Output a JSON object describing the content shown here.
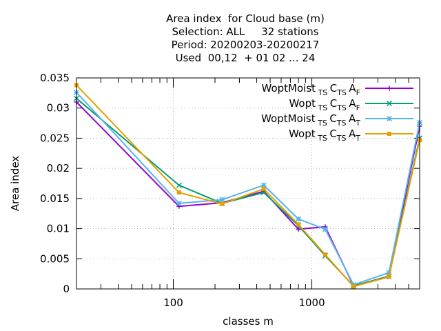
{
  "chart_data": {
    "type": "line",
    "title_lines": [
      "Area index  for Cloud base (m)",
      "Selection: ALL     32 stations",
      "Period: 20200203-20200217",
      "Used  00,12  + 01 02 ... 24"
    ],
    "xlabel": "classes m",
    "ylabel": "Area index",
    "x_scale": "log",
    "xlim": [
      20,
      6000
    ],
    "ylim": [
      0,
      0.035
    ],
    "x_tick_labels": [
      "100",
      "1000"
    ],
    "y_tick_labels": [
      "0",
      "0.005",
      "0.01",
      "0.015",
      "0.02",
      "0.025",
      "0.03",
      "0.035"
    ],
    "grid": true,
    "legend_position": "top-right",
    "x": [
      20,
      110,
      225,
      450,
      800,
      1250,
      2000,
      3600,
      6000
    ],
    "series": [
      {
        "name": "WoptMoist TS C TS A F",
        "label_main": "WoptMoist",
        "label_sub": "TS",
        "label_mid": "C",
        "label_sub2": "TS",
        "label_end": "A",
        "label_sub3": "F",
        "color": "#9400d3",
        "marker": "plus",
        "values": [
          0.031,
          0.0137,
          0.0143,
          0.0162,
          0.0099,
          0.0103,
          0.0005,
          0.0021,
          0.027
        ]
      },
      {
        "name": "Wopt TS C TS A F",
        "label_main": "Wopt",
        "label_sub": "TS",
        "label_mid": "C",
        "label_sub2": "TS",
        "label_end": "A",
        "label_sub3": "F",
        "color": "#009e73",
        "marker": "cross",
        "values": [
          0.0316,
          0.0172,
          0.0142,
          0.016,
          0.0105,
          0.0055,
          0.0005,
          0.0021,
          0.025
        ]
      },
      {
        "name": "WoptMoist TS C TS A T",
        "label_main": "WoptMoist",
        "label_sub": "TS",
        "label_mid": "C",
        "label_sub2": "TS",
        "label_end": "A",
        "label_sub3": "T",
        "color": "#56b4e9",
        "marker": "star",
        "values": [
          0.0326,
          0.0142,
          0.0148,
          0.0172,
          0.0116,
          0.0099,
          0.0007,
          0.0027,
          0.0276
        ]
      },
      {
        "name": "Wopt TS C TS A T",
        "label_main": "Wopt",
        "label_sub": "TS",
        "label_mid": "C",
        "label_sub2": "TS",
        "label_end": "A",
        "label_sub3": "T",
        "color": "#e69f00",
        "marker": "box",
        "values": [
          0.0338,
          0.016,
          0.0141,
          0.0166,
          0.0107,
          0.0057,
          0.0004,
          0.002,
          0.0247
        ]
      }
    ]
  }
}
